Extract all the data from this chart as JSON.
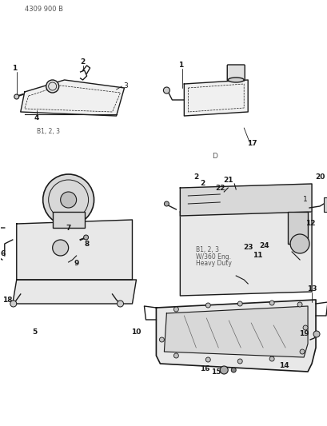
{
  "title": "4309 900 B",
  "background_color": "#ffffff",
  "line_color": "#1a1a1a",
  "text_color": "#1a1a1a",
  "fig_width": 4.1,
  "fig_height": 5.33,
  "dpi": 100,
  "labels": {
    "top_left_note": "B1, 2, 3",
    "top_right_note": "D",
    "mid_note": "B1, 2, 3\nW/360 Eng.\nHeavy Duty"
  },
  "part_numbers": [
    1,
    2,
    3,
    4,
    5,
    6,
    7,
    8,
    9,
    10,
    11,
    12,
    13,
    14,
    15,
    16,
    17,
    18,
    19,
    20,
    21,
    22,
    23,
    24
  ]
}
